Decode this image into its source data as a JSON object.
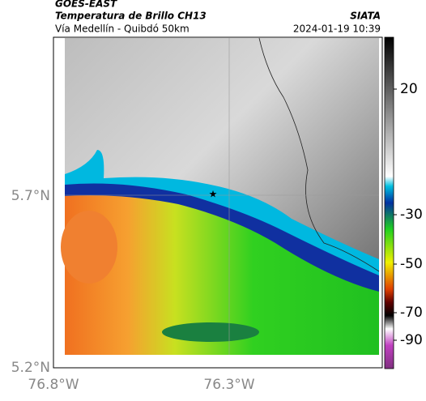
{
  "header": {
    "product": "GOES-EAST",
    "title": "Temperatura de Brillo CH13",
    "subtitle": "Vía Medellín - Quibdó 50km",
    "source": "SIATA",
    "datetime": "2024-01-19 10:39"
  },
  "map": {
    "lat_ticks": [
      "5.7°N",
      "5.2°N"
    ],
    "lon_ticks": [
      "76.8°W",
      "76.3°W"
    ]
  },
  "colorbar": {
    "ticks": [
      20,
      -30,
      -50,
      -70,
      -90
    ]
  }
}
